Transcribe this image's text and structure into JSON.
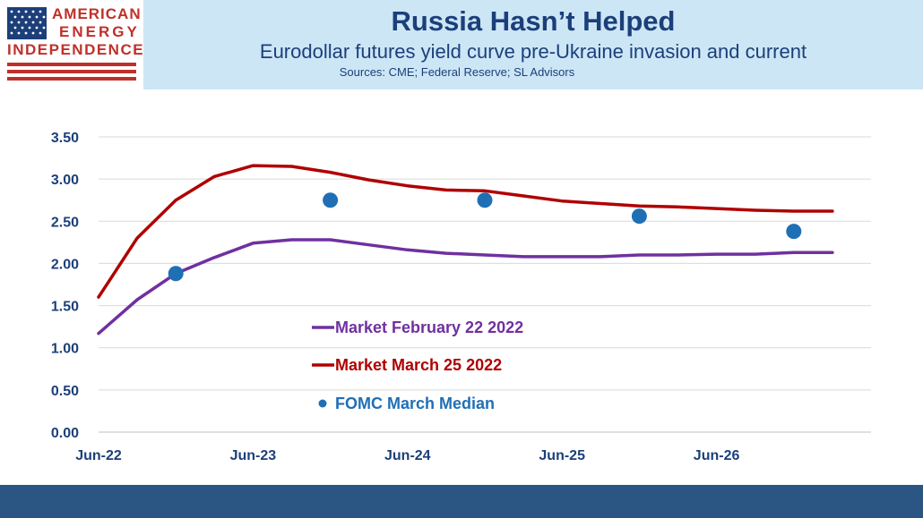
{
  "brand": {
    "line1": "AMERICAN",
    "line2": "ENERGY",
    "line3": "INDEPENDENCE"
  },
  "header": {
    "title": "Russia Hasn’t Helped",
    "subtitle": "Eurodollar futures yield curve pre-Ukraine invasion and current",
    "source": "Sources: CME; Federal Reserve; SL Advisors"
  },
  "colors": {
    "purple": "#7030a0",
    "red": "#b00000",
    "blue": "#1f6fb5",
    "axis_text": "#1c3f7a",
    "footer": "#2b5683",
    "header_bg": "#cce6f6"
  },
  "chart_data": {
    "type": "line",
    "x_axis": {
      "range": [
        "2022-06",
        "2027-06"
      ],
      "tick_labels": [
        "Jun-22",
        "Jun-23",
        "Jun-24",
        "Jun-25",
        "Jun-26"
      ]
    },
    "y_axis": {
      "range": [
        0,
        3.5
      ],
      "tick_labels": [
        "0.00",
        "0.50",
        "1.00",
        "1.50",
        "2.00",
        "2.50",
        "3.00",
        "3.50"
      ]
    },
    "grid": "horizontal",
    "legend_placement": "center",
    "series": [
      {
        "name": "Market February 22 2022",
        "kind": "line",
        "color": "#7030a0",
        "points": [
          [
            "2022-06",
            1.17
          ],
          [
            "2022-09",
            1.57
          ],
          [
            "2022-12",
            1.88
          ],
          [
            "2023-03",
            2.07
          ],
          [
            "2023-06",
            2.24
          ],
          [
            "2023-09",
            2.28
          ],
          [
            "2023-12",
            2.28
          ],
          [
            "2024-03",
            2.22
          ],
          [
            "2024-06",
            2.16
          ],
          [
            "2024-09",
            2.12
          ],
          [
            "2024-12",
            2.1
          ],
          [
            "2025-03",
            2.08
          ],
          [
            "2025-06",
            2.08
          ],
          [
            "2025-09",
            2.08
          ],
          [
            "2025-12",
            2.1
          ],
          [
            "2026-03",
            2.1
          ],
          [
            "2026-06",
            2.11
          ],
          [
            "2026-09",
            2.11
          ],
          [
            "2026-12",
            2.13
          ],
          [
            "2027-03",
            2.13
          ]
        ]
      },
      {
        "name": "Market March 25 2022",
        "kind": "line",
        "color": "#b00000",
        "points": [
          [
            "2022-06",
            1.6
          ],
          [
            "2022-09",
            2.3
          ],
          [
            "2022-12",
            2.75
          ],
          [
            "2023-03",
            3.03
          ],
          [
            "2023-06",
            3.16
          ],
          [
            "2023-09",
            3.15
          ],
          [
            "2023-12",
            3.08
          ],
          [
            "2024-03",
            2.99
          ],
          [
            "2024-06",
            2.92
          ],
          [
            "2024-09",
            2.87
          ],
          [
            "2024-12",
            2.86
          ],
          [
            "2025-03",
            2.8
          ],
          [
            "2025-06",
            2.74
          ],
          [
            "2025-09",
            2.71
          ],
          [
            "2025-12",
            2.68
          ],
          [
            "2026-03",
            2.67
          ],
          [
            "2026-06",
            2.65
          ],
          [
            "2026-09",
            2.63
          ],
          [
            "2026-12",
            2.62
          ],
          [
            "2027-03",
            2.62
          ]
        ]
      },
      {
        "name": "FOMC March Median",
        "kind": "scatter",
        "color": "#1f6fb5",
        "points": [
          [
            "2022-12",
            1.88
          ],
          [
            "2023-12",
            2.75
          ],
          [
            "2024-12",
            2.75
          ],
          [
            "2025-12",
            2.56
          ],
          [
            "2026-12",
            2.38
          ]
        ]
      }
    ]
  }
}
